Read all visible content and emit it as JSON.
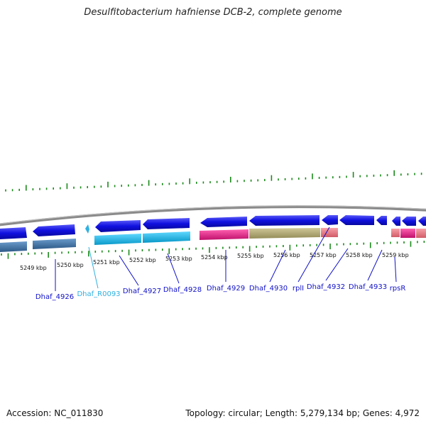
{
  "title": "Desulfitobacterium hafniense DCB-2, complete genome",
  "accession_text": "Accession: NC_011830",
  "topology_text": "Topology: circular; Length: 5,279,134 bp; Genes: 4,972",
  "ticks": [
    {
      "label": "5249 kbp"
    },
    {
      "label": "5250 kbp"
    },
    {
      "label": "5251 kbp"
    },
    {
      "label": "5252 kbp"
    },
    {
      "label": "5253 kbp"
    },
    {
      "label": "5254 kbp"
    },
    {
      "label": "5255 kbp"
    },
    {
      "label": "5256 kbp"
    },
    {
      "label": "5257 kbp"
    },
    {
      "label": "5258 kbp"
    },
    {
      "label": "5259 kbp"
    }
  ],
  "genes": [
    {
      "label": "Dhaf_4926",
      "color": "#1010c8"
    },
    {
      "label": "Dhaf_R0093",
      "color": "#30b0e0"
    },
    {
      "label": "Dhaf_4927",
      "color": "#1010c8"
    },
    {
      "label": "Dhaf_4928",
      "color": "#1010c8"
    },
    {
      "label": "Dhaf_4929",
      "color": "#1010c8"
    },
    {
      "label": "Dhaf_4930",
      "color": "#1010c8"
    },
    {
      "label": "rplI",
      "color": "#1010c8"
    },
    {
      "label": "Dhaf_4932",
      "color": "#1010c8"
    },
    {
      "label": "Dhaf_4933",
      "color": "#1010c8"
    },
    {
      "label": "rpsR",
      "color": "#1010c8"
    }
  ],
  "colors": {
    "backbone": "#8a8a8a",
    "forward_cds": "#1010e8",
    "cog_blue": "#4a7fb0",
    "cog_cyan": "#18b8e8",
    "cog_magenta": "#e8208c",
    "cog_olive": "#b8b078",
    "cog_salmon": "#ec7c88",
    "tick_green": "#1a8a1a"
  }
}
